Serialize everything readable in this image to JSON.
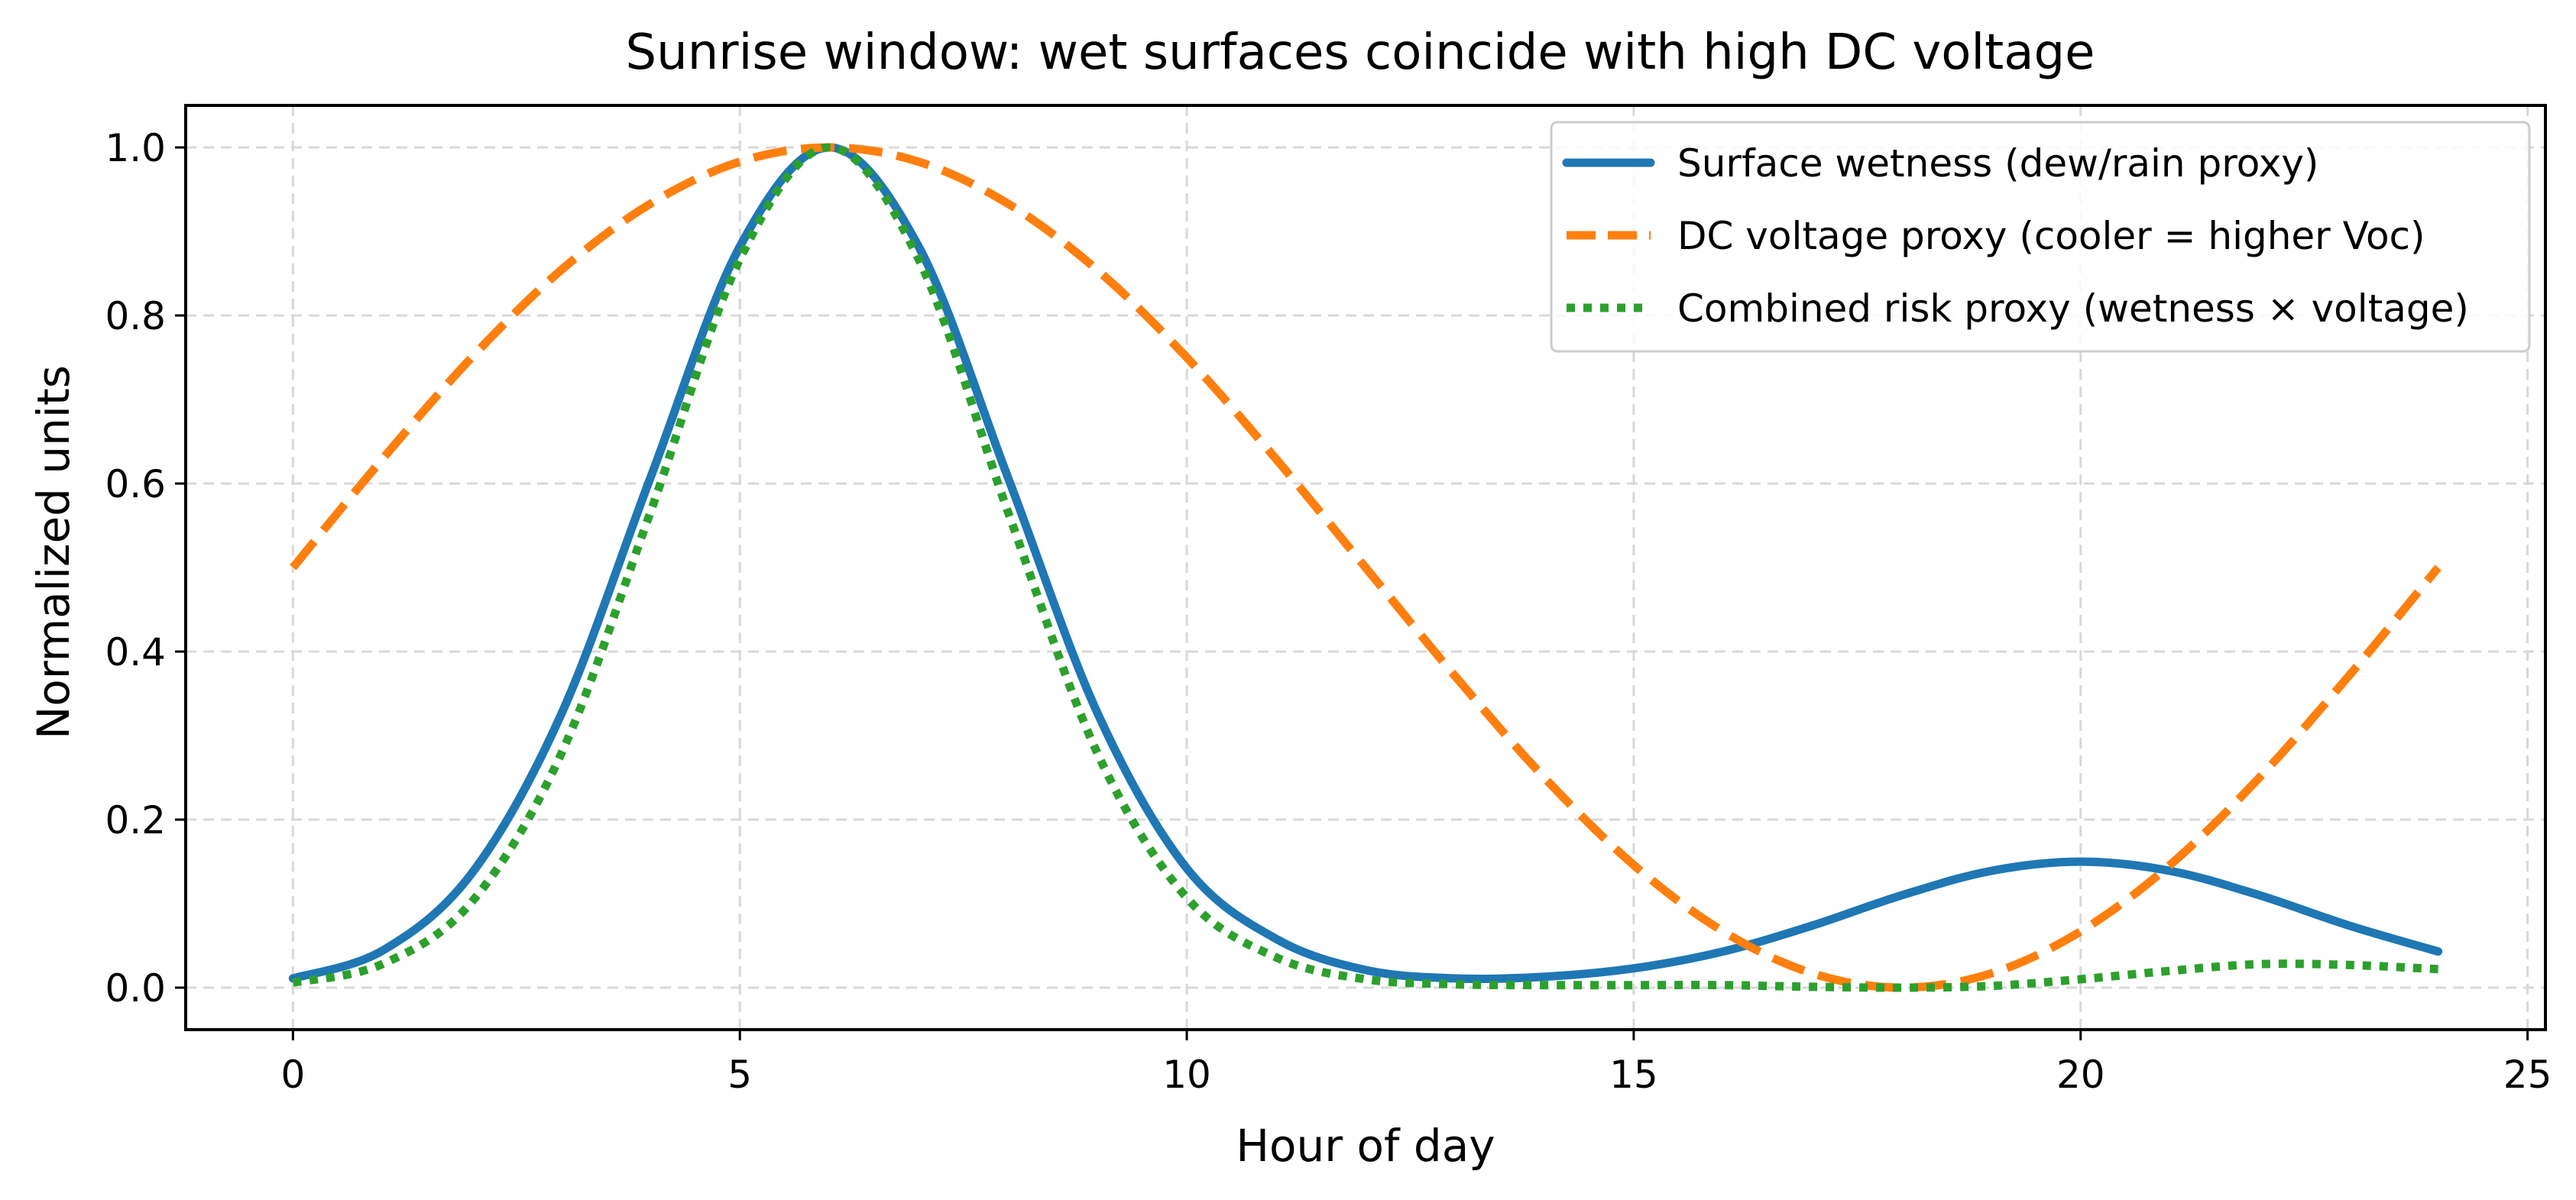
{
  "chart_data": {
    "type": "line",
    "title": "Sunrise window: wet surfaces coincide with high DC voltage",
    "xlabel": "Hour of day",
    "ylabel": "Normalized units",
    "xlim": [
      -1.2,
      25.2
    ],
    "ylim": [
      -0.05,
      1.05
    ],
    "xticks": [
      0,
      5,
      10,
      15,
      20,
      25
    ],
    "xtick_labels": [
      "0",
      "5",
      "10",
      "15",
      "20",
      "25"
    ],
    "yticks": [
      0.0,
      0.2,
      0.4,
      0.6,
      0.8,
      1.0
    ],
    "ytick_labels": [
      "0.0",
      "0.2",
      "0.4",
      "0.6",
      "0.8",
      "1.0"
    ],
    "grid": true,
    "legend_position": "top-right",
    "x": [
      0,
      1,
      2,
      3,
      4,
      5,
      6,
      7,
      8,
      9,
      10,
      11,
      12,
      13,
      14,
      15,
      16,
      17,
      18,
      19,
      20,
      21,
      22,
      23,
      24
    ],
    "series": [
      {
        "name": "Surface wetness (dew/rain proxy)",
        "color": "#1f77b4",
        "style": "solid",
        "values": [
          0.011,
          0.044,
          0.136,
          0.325,
          0.607,
          0.882,
          1.0,
          0.882,
          0.607,
          0.327,
          0.142,
          0.058,
          0.021,
          0.011,
          0.013,
          0.023,
          0.043,
          0.074,
          0.11,
          0.139,
          0.15,
          0.139,
          0.11,
          0.074,
          0.043
        ]
      },
      {
        "name": "DC voltage proxy (cooler = higher Voc)",
        "color": "#ff7f0e",
        "style": "dashed",
        "values": [
          0.5,
          0.629,
          0.75,
          0.854,
          0.933,
          0.983,
          1.0,
          0.983,
          0.933,
          0.854,
          0.75,
          0.629,
          0.5,
          0.371,
          0.25,
          0.146,
          0.067,
          0.017,
          0.0,
          0.017,
          0.067,
          0.146,
          0.25,
          0.371,
          0.5
        ]
      },
      {
        "name": "Combined risk proxy (wetness × voltage)",
        "color": "#2ca02c",
        "style": "dotted",
        "values": [
          0.006,
          0.028,
          0.102,
          0.278,
          0.566,
          0.867,
          1.0,
          0.867,
          0.566,
          0.279,
          0.107,
          0.036,
          0.01,
          0.004,
          0.003,
          0.003,
          0.003,
          0.001,
          0.0,
          0.002,
          0.01,
          0.02,
          0.028,
          0.027,
          0.022
        ]
      }
    ]
  }
}
